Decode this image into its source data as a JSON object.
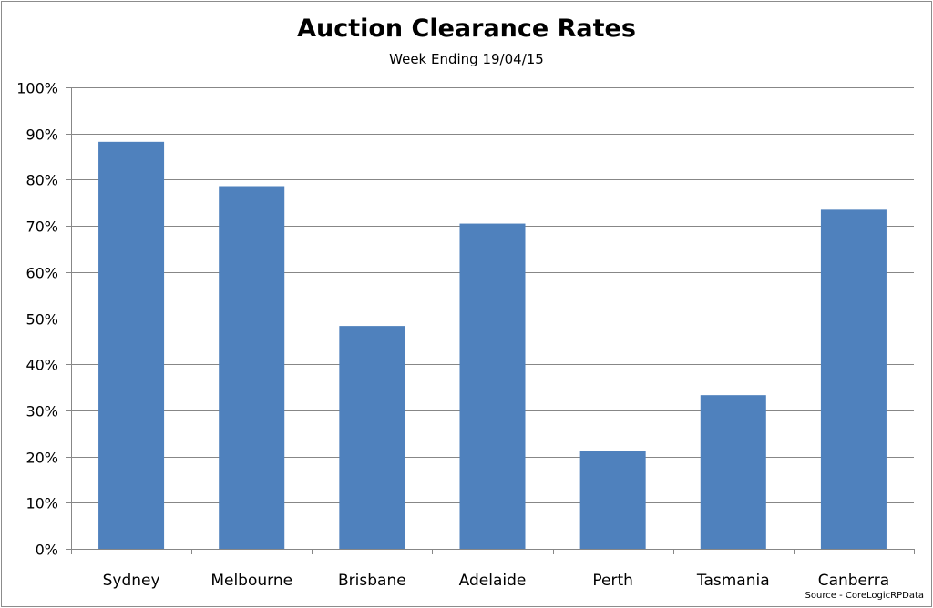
{
  "chart_data": {
    "type": "bar",
    "title": "Auction Clearance Rates",
    "subtitle": "Week Ending 19/04/15",
    "source": "Source - CoreLogicRPData",
    "categories": [
      "Sydney",
      "Melbourne",
      "Brisbane",
      "Adelaide",
      "Perth",
      "Tasmania",
      "Canberra"
    ],
    "values": [
      88.2,
      78.6,
      48.3,
      70.5,
      21.2,
      33.3,
      73.5
    ],
    "ylim": [
      0,
      100
    ],
    "yticks": [
      "0%",
      "10%",
      "20%",
      "30%",
      "40%",
      "50%",
      "60%",
      "70%",
      "80%",
      "90%",
      "100%"
    ],
    "grid": true,
    "bar_color": "#4f81bd",
    "grid_color": "#878787"
  }
}
